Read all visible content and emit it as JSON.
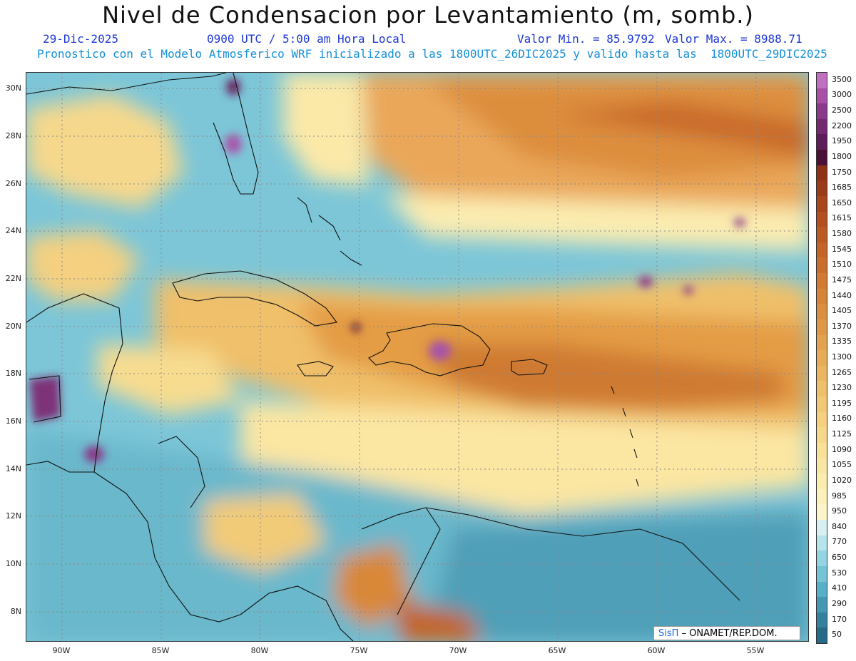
{
  "header": {
    "title": "Nivel de Condensacion por Levantamiento (m, somb.)",
    "date": "29-Dic-2025",
    "time": "0900 UTC / 5:00 am Hora Local",
    "min_label": "Valor Min. = 85.9792",
    "max_label": "Valor Max. = 8988.71",
    "forecast": "Pronostico con el Modelo Atmosferico WRF inicializado a las 1800UTC_26DIC2025 y valido hasta las  1800UTC_29DIC2025"
  },
  "axes": {
    "lat_labels": [
      "30N",
      "28N",
      "26N",
      "24N",
      "22N",
      "20N",
      "18N",
      "16N",
      "14N",
      "12N",
      "10N",
      "8N"
    ],
    "lon_labels": [
      "90W",
      "85W",
      "80W",
      "75W",
      "70W",
      "65W",
      "60W",
      "55W"
    ]
  },
  "legend": {
    "values": [
      "3500",
      "3000",
      "2500",
      "2200",
      "1950",
      "1800",
      "1750",
      "1685",
      "1650",
      "1615",
      "1580",
      "1545",
      "1510",
      "1475",
      "1440",
      "1405",
      "1370",
      "1335",
      "1300",
      "1265",
      "1230",
      "1195",
      "1160",
      "1125",
      "1090",
      "1055",
      "1020",
      "985",
      "950",
      "840",
      "770",
      "650",
      "530",
      "410",
      "290",
      "170",
      "50"
    ],
    "colors": [
      "#c070c0",
      "#a850a8",
      "#8a3a8a",
      "#742a70",
      "#5e1c58",
      "#4a1038",
      "#8e3216",
      "#9a3c18",
      "#a8461c",
      "#b45020",
      "#bc5a24",
      "#c46428",
      "#ca6e2c",
      "#d07a32",
      "#d68438",
      "#da8e40",
      "#de9848",
      "#e2a250",
      "#e6ac58",
      "#eab662",
      "#eec06c",
      "#f1c876",
      "#f4d080",
      "#f6d88c",
      "#f8e098",
      "#f9e6a4",
      "#fbecb0",
      "#fcf1bd",
      "#fdf5ca",
      "#d8f0f2",
      "#b6e4ec",
      "#94d4e2",
      "#74c4d6",
      "#58b0c8",
      "#4498b4",
      "#34819e",
      "#266a86"
    ]
  },
  "credit": {
    "brand": "SisΠ",
    "org": " – ONAMET/REP.DOM."
  }
}
